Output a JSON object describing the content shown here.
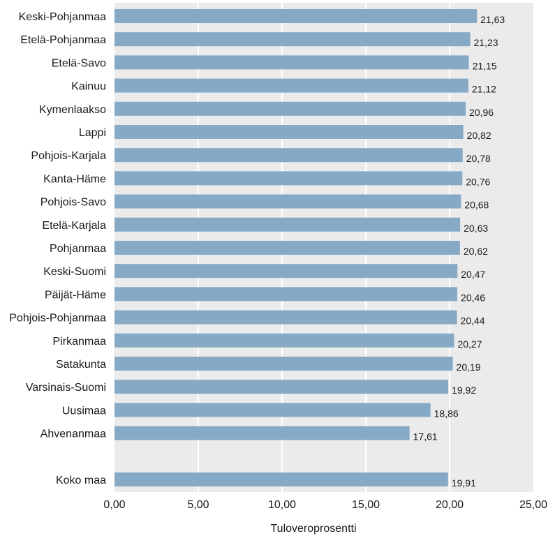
{
  "chart_data": {
    "type": "bar",
    "orientation": "horizontal",
    "categories": [
      "Keski-Pohjanmaa",
      "Etelä-Pohjanmaa",
      "Etelä-Savo",
      "Kainuu",
      "Kymenlaakso",
      "Lappi",
      "Pohjois-Karjala",
      "Kanta-Häme",
      "Pohjois-Savo",
      "Etelä-Karjala",
      "Pohjanmaa",
      "Keski-Suomi",
      "Päijät-Häme",
      "Pohjois-Pohjanmaa",
      "Pirkanmaa",
      "Satakunta",
      "Varsinais-Suomi",
      "Uusimaa",
      "Ahvenanmaa",
      "Koko maa"
    ],
    "values": [
      21.63,
      21.23,
      21.15,
      21.12,
      20.96,
      20.82,
      20.78,
      20.76,
      20.68,
      20.63,
      20.62,
      20.47,
      20.46,
      20.44,
      20.27,
      20.19,
      19.92,
      18.86,
      17.61,
      19.91
    ],
    "value_labels": [
      "21,63",
      "21,23",
      "21,15",
      "21,12",
      "20,96",
      "20,82",
      "20,78",
      "20,76",
      "20,68",
      "20,63",
      "20,62",
      "20,47",
      "20,46",
      "20,44",
      "20,27",
      "20,19",
      "19,92",
      "18,86",
      "17,61",
      "19,91"
    ],
    "xlim": [
      0,
      25
    ],
    "xticks": [
      0,
      5,
      10,
      15,
      20,
      25
    ],
    "xtick_labels": [
      "0,00",
      "5,00",
      "10,00",
      "15,00",
      "20,00",
      "25,00"
    ],
    "xlabel": "Tuloveroprosentti",
    "ylabel": "",
    "title": "",
    "grid": "vertical",
    "colors": {
      "bar": "#86a9c6",
      "background": "#ebebeb",
      "grid": "#ffffff"
    }
  }
}
